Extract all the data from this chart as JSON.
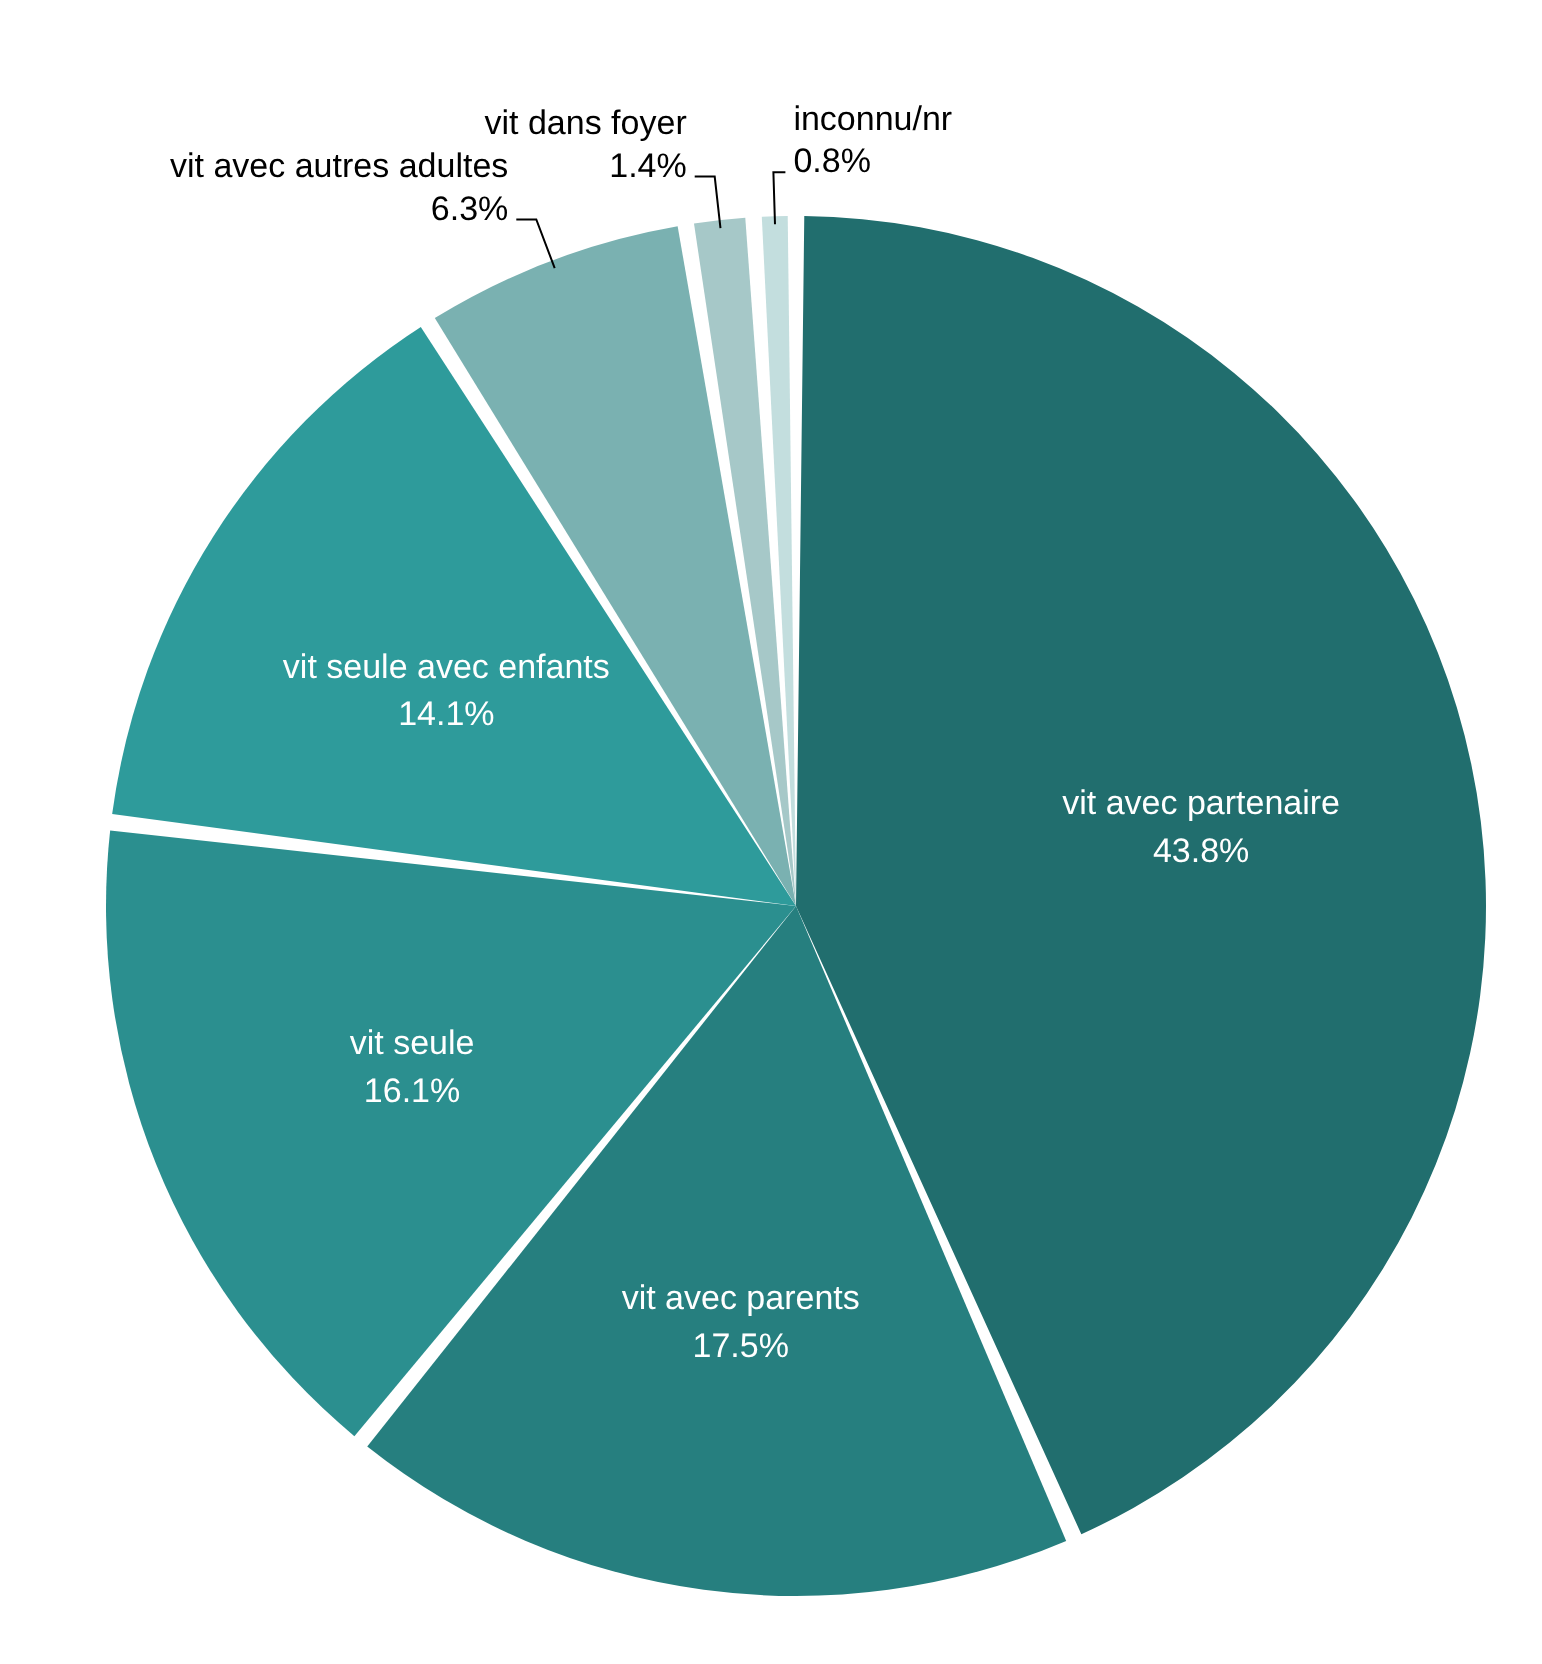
{
  "chart_data": {
    "type": "pie",
    "categories": [
      "vit avec partenaire",
      "vit avec parents",
      "vit seule",
      "vit seule avec enfants",
      "vit avec autres adultes",
      "vit dans foyer",
      "inconnu/nr"
    ],
    "values": [
      43.8,
      17.5,
      16.1,
      14.1,
      6.3,
      1.4,
      0.8
    ],
    "colors": [
      "#216e6e",
      "#267f7f",
      "#2b8f8f",
      "#2e9b9b",
      "#7ab1b1",
      "#a6c8c8",
      "#c3dede"
    ],
    "value_labels": [
      "43.8%",
      "17.5%",
      "16.1%",
      "14.1%",
      "6.3%",
      "1.4%",
      "0.8%"
    ]
  }
}
